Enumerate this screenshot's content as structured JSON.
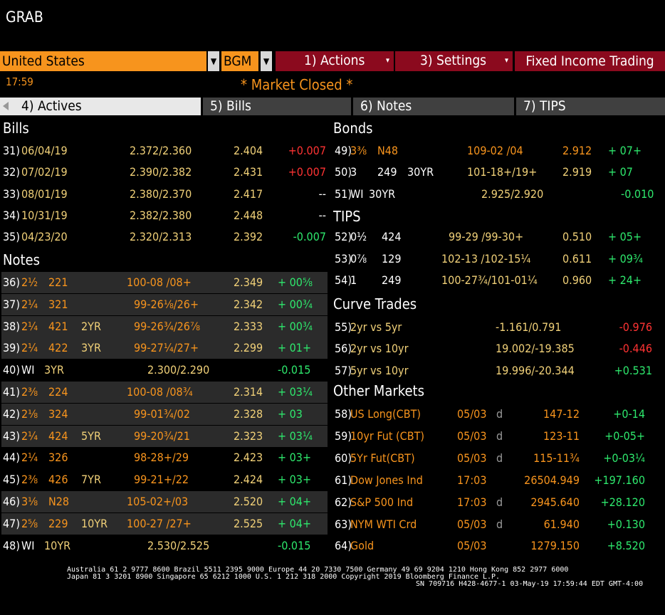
{
  "app": {
    "title": "GRAB"
  },
  "toolbar": {
    "country": "United States",
    "source": "BGM",
    "actions": "1) Actions",
    "settings": "3) Settings",
    "fixed_income": "Fixed Income Trading"
  },
  "status": {
    "time": "17:59",
    "market": "* Market Closed *"
  },
  "tabs": [
    "4) Actives",
    "5) Bills",
    "6) Notes",
    "7) TIPS"
  ],
  "bills": {
    "title": "Bills",
    "rows": [
      {
        "num": "31)",
        "date": "06/04/19",
        "bidask": "2.372/2.360",
        "yield": "2.404",
        "chg": "+0.007",
        "dir": "red"
      },
      {
        "num": "32)",
        "date": "07/02/19",
        "bidask": "2.390/2.382",
        "yield": "2.431",
        "chg": "+0.007",
        "dir": "red"
      },
      {
        "num": "33)",
        "date": "08/01/19",
        "bidask": "2.380/2.370",
        "yield": "2.417",
        "chg": "--",
        "dir": "wht"
      },
      {
        "num": "34)",
        "date": "10/31/19",
        "bidask": "2.382/2.380",
        "yield": "2.448",
        "chg": "--",
        "dir": "wht"
      },
      {
        "num": "35)",
        "date": "04/23/20",
        "bidask": "2.320/2.313",
        "yield": "2.392",
        "chg": "-0.007",
        "dir": "grn"
      }
    ]
  },
  "notes": {
    "title": "Notes",
    "rows": [
      {
        "num": "36)",
        "cpn": "2½",
        "mat": "221",
        "tenor": "",
        "bidask": "100-08  /08+",
        "yield": "2.349",
        "chg": "+ 00⅝"
      },
      {
        "num": "37)",
        "cpn": "2¼",
        "mat": "321",
        "tenor": "",
        "bidask": "99-26⅛/26+",
        "yield": "2.342",
        "chg": "+ 00¾"
      },
      {
        "num": "38)",
        "cpn": "2¼",
        "mat": "421",
        "tenor": "2YR",
        "bidask": "99-26¾/26⅞",
        "yield": "2.333",
        "chg": "+ 00¾"
      },
      {
        "num": "39)",
        "cpn": "2¼",
        "mat": "422",
        "tenor": "3YR",
        "bidask": "99-27¼/27+",
        "yield": "2.299",
        "chg": "+ 01+"
      },
      {
        "num": "40)",
        "cpn": "WI",
        "mat": "3YR",
        "tenor": "",
        "bidask": "2.300/2.290",
        "yield": "",
        "chg": "-0.015"
      },
      {
        "num": "41)",
        "cpn": "2⅜",
        "mat": "224",
        "tenor": "",
        "bidask": "100-08  /08¾",
        "yield": "2.314",
        "chg": "+ 03¼"
      },
      {
        "num": "42)",
        "cpn": "2⅛",
        "mat": "324",
        "tenor": "",
        "bidask": "99-01¾/02",
        "yield": "2.328",
        "chg": "+ 03"
      },
      {
        "num": "43)",
        "cpn": "2¼",
        "mat": "424",
        "tenor": "5YR",
        "bidask": "99-20¾/21",
        "yield": "2.323",
        "chg": "+ 03¼"
      },
      {
        "num": "44)",
        "cpn": "2¼",
        "mat": "326",
        "tenor": "",
        "bidask": "98-28+/29",
        "yield": "2.423",
        "chg": "+ 03+"
      },
      {
        "num": "45)",
        "cpn": "2⅜",
        "mat": "426",
        "tenor": "7YR",
        "bidask": "99-21+/22",
        "yield": "2.424",
        "chg": "+ 03+"
      },
      {
        "num": "46)",
        "cpn": "3⅛",
        "mat": "N28",
        "tenor": "",
        "bidask": "105-02+/03",
        "yield": "2.520",
        "chg": "+ 04+"
      },
      {
        "num": "47)",
        "cpn": "2⅝",
        "mat": "229",
        "tenor": "10YR",
        "bidask": "100-27  /27+",
        "yield": "2.525",
        "chg": "+ 04+"
      },
      {
        "num": "48)",
        "cpn": "WI",
        "mat": "10YR",
        "tenor": "",
        "bidask": "2.530/2.525",
        "yield": "",
        "chg": "-0.015"
      }
    ]
  },
  "bonds": {
    "title": "Bonds",
    "rows": [
      {
        "num": "49)",
        "cpn": "3⅜",
        "mat": "N48",
        "tenor": "",
        "bidask": "109-02 /04",
        "yield": "2.912",
        "chg": "+ 07+"
      },
      {
        "num": "50)",
        "cpn": "3",
        "mat": "249",
        "tenor": "30YR",
        "bidask": "101-18+/19+",
        "yield": "2.919",
        "chg": "+ 07"
      },
      {
        "num": "51)",
        "cpn": "WI",
        "mat": "30YR",
        "tenor": "",
        "bidask": "2.925/2.920",
        "yield": "",
        "chg": "-0.010"
      }
    ]
  },
  "tips": {
    "title": "TIPS",
    "rows": [
      {
        "num": "52)",
        "cpn": "0½",
        "mat": "424",
        "bidask": "99-29  /99-30+",
        "yield": "0.510",
        "chg": "+ 05+"
      },
      {
        "num": "53)",
        "cpn": "0⅞",
        "mat": "129",
        "bidask": "102-13  /102-15¼",
        "yield": "0.611",
        "chg": "+ 09¾"
      },
      {
        "num": "54)",
        "cpn": "1",
        "mat": "249",
        "bidask": "100-27¾/101-01¼",
        "yield": "0.960",
        "chg": "+ 24+"
      }
    ]
  },
  "curve": {
    "title": "Curve Trades",
    "rows": [
      {
        "num": "55)",
        "name": "2yr vs 5yr",
        "val": "-1.161/0.791",
        "chg": "-0.976",
        "dir": "red"
      },
      {
        "num": "56)",
        "name": "2yr vs 10yr",
        "val": "19.002/-19.385",
        "chg": "-0.446",
        "dir": "red"
      },
      {
        "num": "57)",
        "name": "5yr vs 10yr",
        "val": "19.996/-20.344",
        "chg": "+0.531",
        "dir": "grn"
      }
    ]
  },
  "other": {
    "title": "Other Markets",
    "rows": [
      {
        "num": "58)",
        "name": "US Long(CBT)",
        "date": "05/03",
        "flag": "d",
        "price": "147-12",
        "chg": "+0-14"
      },
      {
        "num": "59)",
        "name": "10yr Fut (CBT)",
        "date": "05/03",
        "flag": "d",
        "price": "123-11",
        "chg": "+0-05+"
      },
      {
        "num": "60)",
        "name": "5Yr Fut(CBT)",
        "date": "05/03",
        "flag": "d",
        "price": "115-11¾",
        "chg": "+0-03¼"
      },
      {
        "num": "61)",
        "name": "Dow Jones Ind",
        "date": "17:03",
        "flag": "",
        "price": "26504.949",
        "chg": "+197.160"
      },
      {
        "num": "62)",
        "name": "S&P 500 Ind",
        "date": "17:03",
        "flag": "d",
        "price": "2945.640",
        "chg": "+28.120"
      },
      {
        "num": "63)",
        "name": "NYM WTI Crd",
        "date": "05/03",
        "flag": "d",
        "price": "61.940",
        "chg": "+0.130"
      },
      {
        "num": "64)",
        "name": "Gold",
        "date": "05/03",
        "flag": "",
        "price": "1279.150",
        "chg": "+8.520"
      }
    ]
  },
  "footer": {
    "line1": "Australia 61 2 9777 8600 Brazil 5511 2395 9000 Europe 44 20 7330 7500 Germany 49 69 9204 1210 Hong Kong 852 2977 6000",
    "line2": "Japan 81 3 3201 8900       Singapore 65 6212 1000      U.S. 1 212 318 2000         Copyright 2019 Bloomberg Finance L.P.",
    "line3": "SN 709716 H428-4677-1 03-May-19 17:59:44 EDT  GMT-4:00"
  }
}
